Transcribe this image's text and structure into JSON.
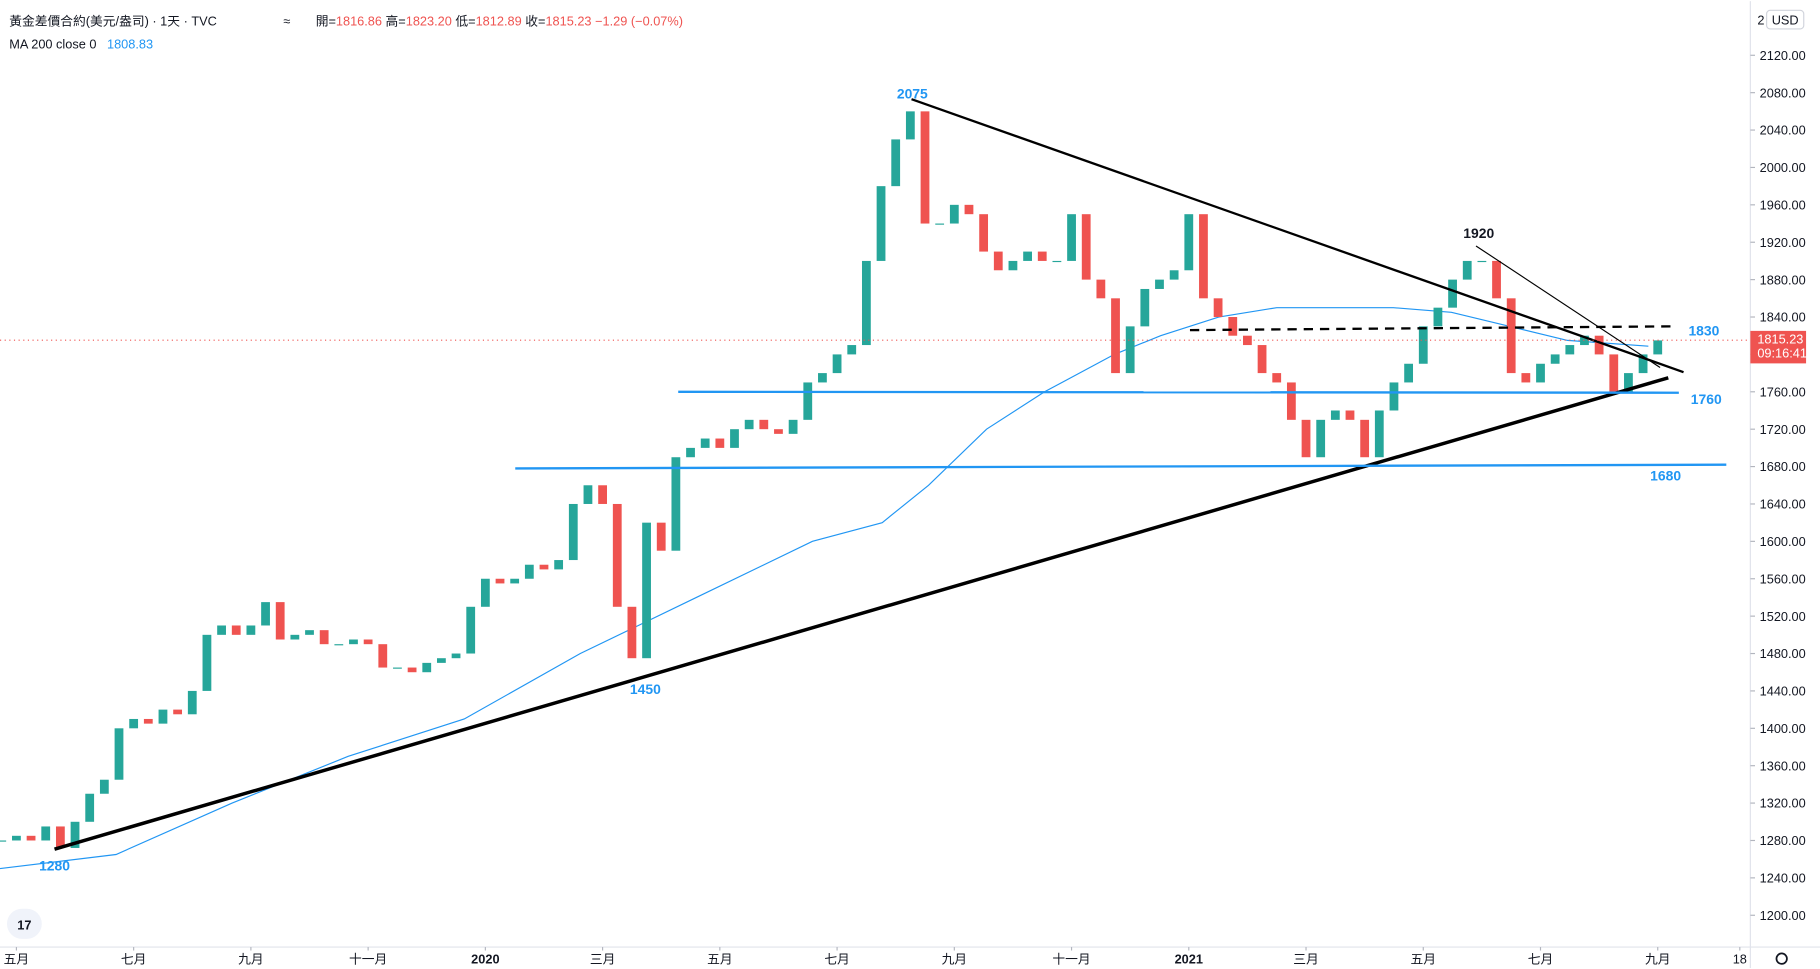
{
  "header": {
    "symbol": "黃金差價合約(美元/盎司)",
    "sep1": "·",
    "interval": "1天",
    "sep2": "·",
    "source": "TVC",
    "ohlc": [
      {
        "label": "開=",
        "value": "1816.86"
      },
      {
        "label": "高=",
        "value": "1823.20"
      },
      {
        "label": "低=",
        "value": "1812.89"
      },
      {
        "label": "收=",
        "value": "1815.23"
      }
    ],
    "change": "−1.29 (−0.07%)",
    "ma_label": "MA 200 close 0",
    "ma_value": "1808.83"
  },
  "chart_data": {
    "type": "candlestick",
    "xlim": [
      -0.28,
      29.58
    ],
    "ylim": [
      1166,
      2178
    ],
    "xticks": [
      {
        "value": 0,
        "label": "五月"
      },
      {
        "value": 2,
        "label": "七月"
      },
      {
        "value": 4,
        "label": "九月"
      },
      {
        "value": 6,
        "label": "十一月"
      },
      {
        "value": 8,
        "label": "2020"
      },
      {
        "value": 10,
        "label": "三月"
      },
      {
        "value": 12,
        "label": "五月"
      },
      {
        "value": 14,
        "label": "七月"
      },
      {
        "value": 16,
        "label": "九月"
      },
      {
        "value": 18,
        "label": "十一月"
      },
      {
        "value": 20,
        "label": "2021"
      },
      {
        "value": 22,
        "label": "三月"
      },
      {
        "value": 24,
        "label": "五月"
      },
      {
        "value": 26,
        "label": "七月"
      },
      {
        "value": 28,
        "label": "九月"
      },
      {
        "value": 29.4,
        "label": "18"
      }
    ],
    "yticks": [
      {
        "value": 1200,
        "label": "1200.00"
      },
      {
        "value": 1240,
        "label": "1240.00"
      },
      {
        "value": 1280,
        "label": "1280.00"
      },
      {
        "value": 1320,
        "label": "1320.00"
      },
      {
        "value": 1360,
        "label": "1360.00"
      },
      {
        "value": 1400,
        "label": "1400.00"
      },
      {
        "value": 1440,
        "label": "1440.00"
      },
      {
        "value": 1480,
        "label": "1480.00"
      },
      {
        "value": 1520,
        "label": "1520.00"
      },
      {
        "value": 1560,
        "label": "1560.00"
      },
      {
        "value": 1600,
        "label": "1600.00"
      },
      {
        "value": 1640,
        "label": "1640.00"
      },
      {
        "value": 1680,
        "label": "1680.00"
      },
      {
        "value": 1720,
        "label": "1720.00"
      },
      {
        "value": 1760,
        "label": "1760.00"
      },
      {
        "value": 1800,
        "label": "1800.00"
      },
      {
        "value": 1840,
        "label": "1840.00"
      },
      {
        "value": 1880,
        "label": "1880.00"
      },
      {
        "value": 1920,
        "label": "1920.00"
      },
      {
        "value": 1960,
        "label": "1960.00"
      },
      {
        "value": 2000,
        "label": "2000.00"
      },
      {
        "value": 2040,
        "label": "2040.00"
      },
      {
        "value": 2080,
        "label": "2080.00"
      },
      {
        "value": 2120,
        "label": "2120.00"
      }
    ],
    "axis_top_label": "2",
    "currency": "USD",
    "up_color": "#26a69a",
    "down_color": "#ef5350",
    "x": [
      -0.25,
      0,
      0.25,
      0.5,
      0.75,
      1,
      1.25,
      1.5,
      1.75,
      2,
      2.25,
      2.5,
      2.75,
      3,
      3.25,
      3.5,
      3.75,
      4,
      4.25,
      4.5,
      4.75,
      5,
      5.25,
      5.5,
      5.75,
      6,
      6.25,
      6.5,
      6.75,
      7,
      7.25,
      7.5,
      7.75,
      8,
      8.25,
      8.5,
      8.75,
      9,
      9.25,
      9.5,
      9.75,
      10,
      10.25,
      10.5,
      10.75,
      11,
      11.25,
      11.5,
      11.75,
      12,
      12.25,
      12.5,
      12.75,
      13,
      13.25,
      13.5,
      13.75,
      14,
      14.25,
      14.5,
      14.75,
      15,
      15.25,
      15.5,
      15.75,
      16,
      16.25,
      16.5,
      16.75,
      17,
      17.25,
      17.5,
      17.75,
      18,
      18.25,
      18.5,
      18.75,
      19,
      19.25,
      19.5,
      19.75,
      20,
      20.25,
      20.5,
      20.75,
      21,
      21.25,
      21.5,
      21.75,
      22,
      22.25,
      22.5,
      22.75,
      23,
      23.25,
      23.5,
      23.75,
      24,
      24.25,
      24.5,
      24.75,
      25,
      25.25,
      25.5,
      25.75,
      26,
      26.25,
      26.5,
      26.75,
      27,
      27.25,
      27.5,
      27.75,
      28
    ],
    "values": [
      1280,
      1285,
      1280,
      1295,
      1272,
      1300,
      1330,
      1345,
      1400,
      1410,
      1405,
      1420,
      1415,
      1440,
      1500,
      1510,
      1500,
      1510,
      1535,
      1495,
      1500,
      1505,
      1490,
      1490,
      1495,
      1490,
      1465,
      1465,
      1460,
      1470,
      1475,
      1480,
      1530,
      1560,
      1555,
      1560,
      1575,
      1570,
      1580,
      1640,
      1660,
      1640,
      1530,
      1475,
      1620,
      1590,
      1690,
      1700,
      1710,
      1700,
      1720,
      1730,
      1720,
      1715,
      1730,
      1770,
      1780,
      1800,
      1810,
      1900,
      1980,
      2030,
      2060,
      1940,
      1940,
      1960,
      1950,
      1910,
      1890,
      1900,
      1910,
      1900,
      1900,
      1950,
      1880,
      1860,
      1780,
      1830,
      1870,
      1880,
      1890,
      1950,
      1860,
      1840,
      1820,
      1810,
      1780,
      1770,
      1730,
      1690,
      1730,
      1740,
      1730,
      1690,
      1740,
      1770,
      1790,
      1830,
      1850,
      1880,
      1900,
      1900,
      1860,
      1780,
      1770,
      1790,
      1800,
      1810,
      1820,
      1800,
      1760,
      1780,
      1800,
      1815
    ],
    "ma": {
      "name": "MA 200",
      "color": "#2196f3",
      "x": [
        -0.28,
        1.7,
        3.68,
        5.66,
        7.64,
        9.62,
        11.6,
        13.58,
        14.77,
        15.56,
        16.55,
        17.54,
        18.73,
        19.52,
        20.51,
        21.5,
        22.5,
        23.49,
        24.48,
        25.47,
        26.46,
        27.84
      ],
      "values": [
        1250,
        1265,
        1320,
        1370,
        1410,
        1480,
        1540,
        1600,
        1620,
        1660,
        1720,
        1760,
        1800,
        1820,
        1840,
        1850,
        1850,
        1850,
        1845,
        1830,
        1815,
        1808.83
      ]
    },
    "last_price": 1815.23,
    "last_price_color": "#ef5350",
    "countdown": "09:16:41",
    "trendlines": [
      {
        "color": "#000000",
        "width": 3,
        "points": [
          [
            0.65,
            1270.7
          ],
          [
            28.18,
            1775
          ]
        ]
      },
      {
        "color": "#000000",
        "width": 2,
        "points": [
          [
            15.27,
            2073
          ],
          [
            28.44,
            1781
          ]
        ]
      },
      {
        "color": "#000000",
        "width": 1,
        "points": [
          [
            24.9,
            1916
          ],
          [
            28.04,
            1786
          ]
        ]
      },
      {
        "color": "#2196f3",
        "width": 2,
        "points": [
          [
            11.29,
            1760
          ],
          [
            28.36,
            1759
          ]
        ]
      },
      {
        "color": "#2196f3",
        "width": 2,
        "points": [
          [
            8.51,
            1678
          ],
          [
            29.17,
            1682
          ]
        ]
      },
      {
        "color": "#000000",
        "width": 2,
        "dash": true,
        "points": [
          [
            20.02,
            1826
          ],
          [
            28.24,
            1830
          ]
        ]
      }
    ],
    "annotations": [
      "2075",
      "1920",
      "1830",
      "1760",
      "1680",
      "1450",
      "1280"
    ]
  }
}
